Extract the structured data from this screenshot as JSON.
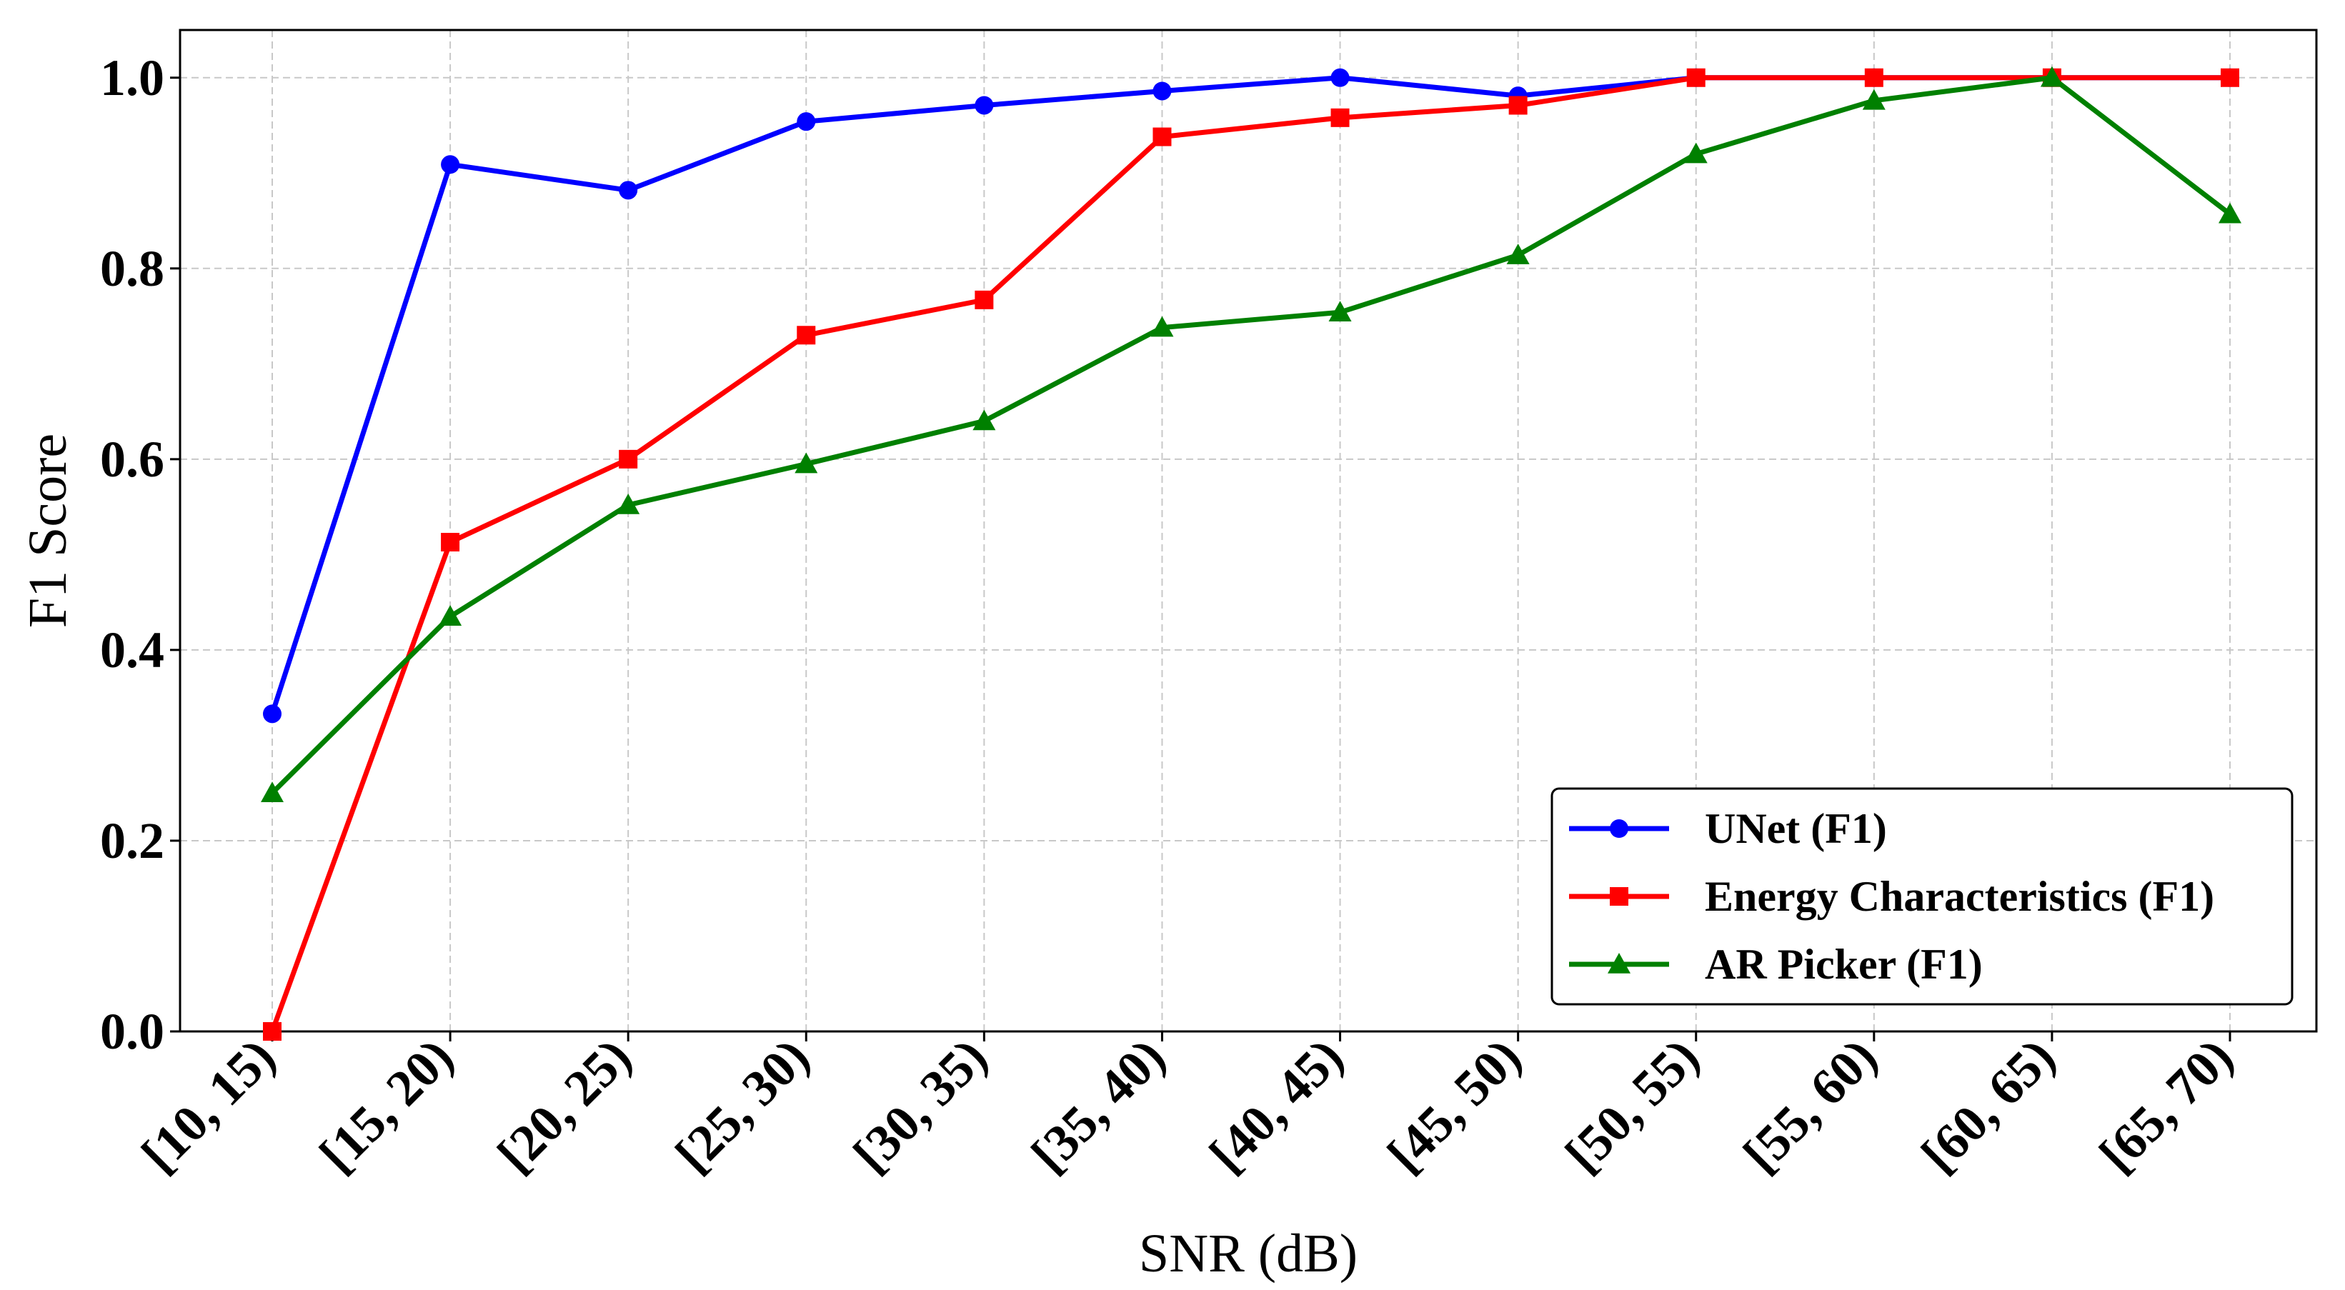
{
  "chart_data": {
    "type": "line",
    "categories": [
      "[10, 15)",
      "[15, 20)",
      "[20, 25)",
      "[25, 30)",
      "[30, 35)",
      "[35, 40)",
      "[40, 45)",
      "[45, 50)",
      "[50, 55)",
      "[55, 60)",
      "[60, 65)",
      "[65, 70)"
    ],
    "series": [
      {
        "name": "UNet (F1)",
        "color": "#0000ff",
        "marker": "circle",
        "values": [
          0.333,
          0.909,
          0.882,
          0.954,
          0.971,
          0.986,
          1.0,
          0.981,
          1.0,
          1.0,
          1.0,
          1.0
        ]
      },
      {
        "name": "Energy Characteristics (F1)",
        "color": "#ff0000",
        "marker": "square",
        "values": [
          0.0,
          0.513,
          0.6,
          0.73,
          0.767,
          0.938,
          0.958,
          0.971,
          1.0,
          1.0,
          1.0,
          1.0
        ]
      },
      {
        "name": "AR Picker (F1)",
        "color": "#008000",
        "marker": "triangle",
        "values": [
          0.25,
          0.435,
          0.552,
          0.595,
          0.64,
          0.738,
          0.754,
          0.814,
          0.92,
          0.976,
          1.0,
          0.857
        ]
      }
    ],
    "title": "",
    "xlabel": "SNR (dB)",
    "ylabel": "F1 Score",
    "ylim": [
      0.0,
      1.05
    ],
    "yticks": [
      "0.0",
      "0.2",
      "0.4",
      "0.6",
      "0.8",
      "1.0"
    ],
    "grid": true,
    "legend_position": "lower-right"
  }
}
